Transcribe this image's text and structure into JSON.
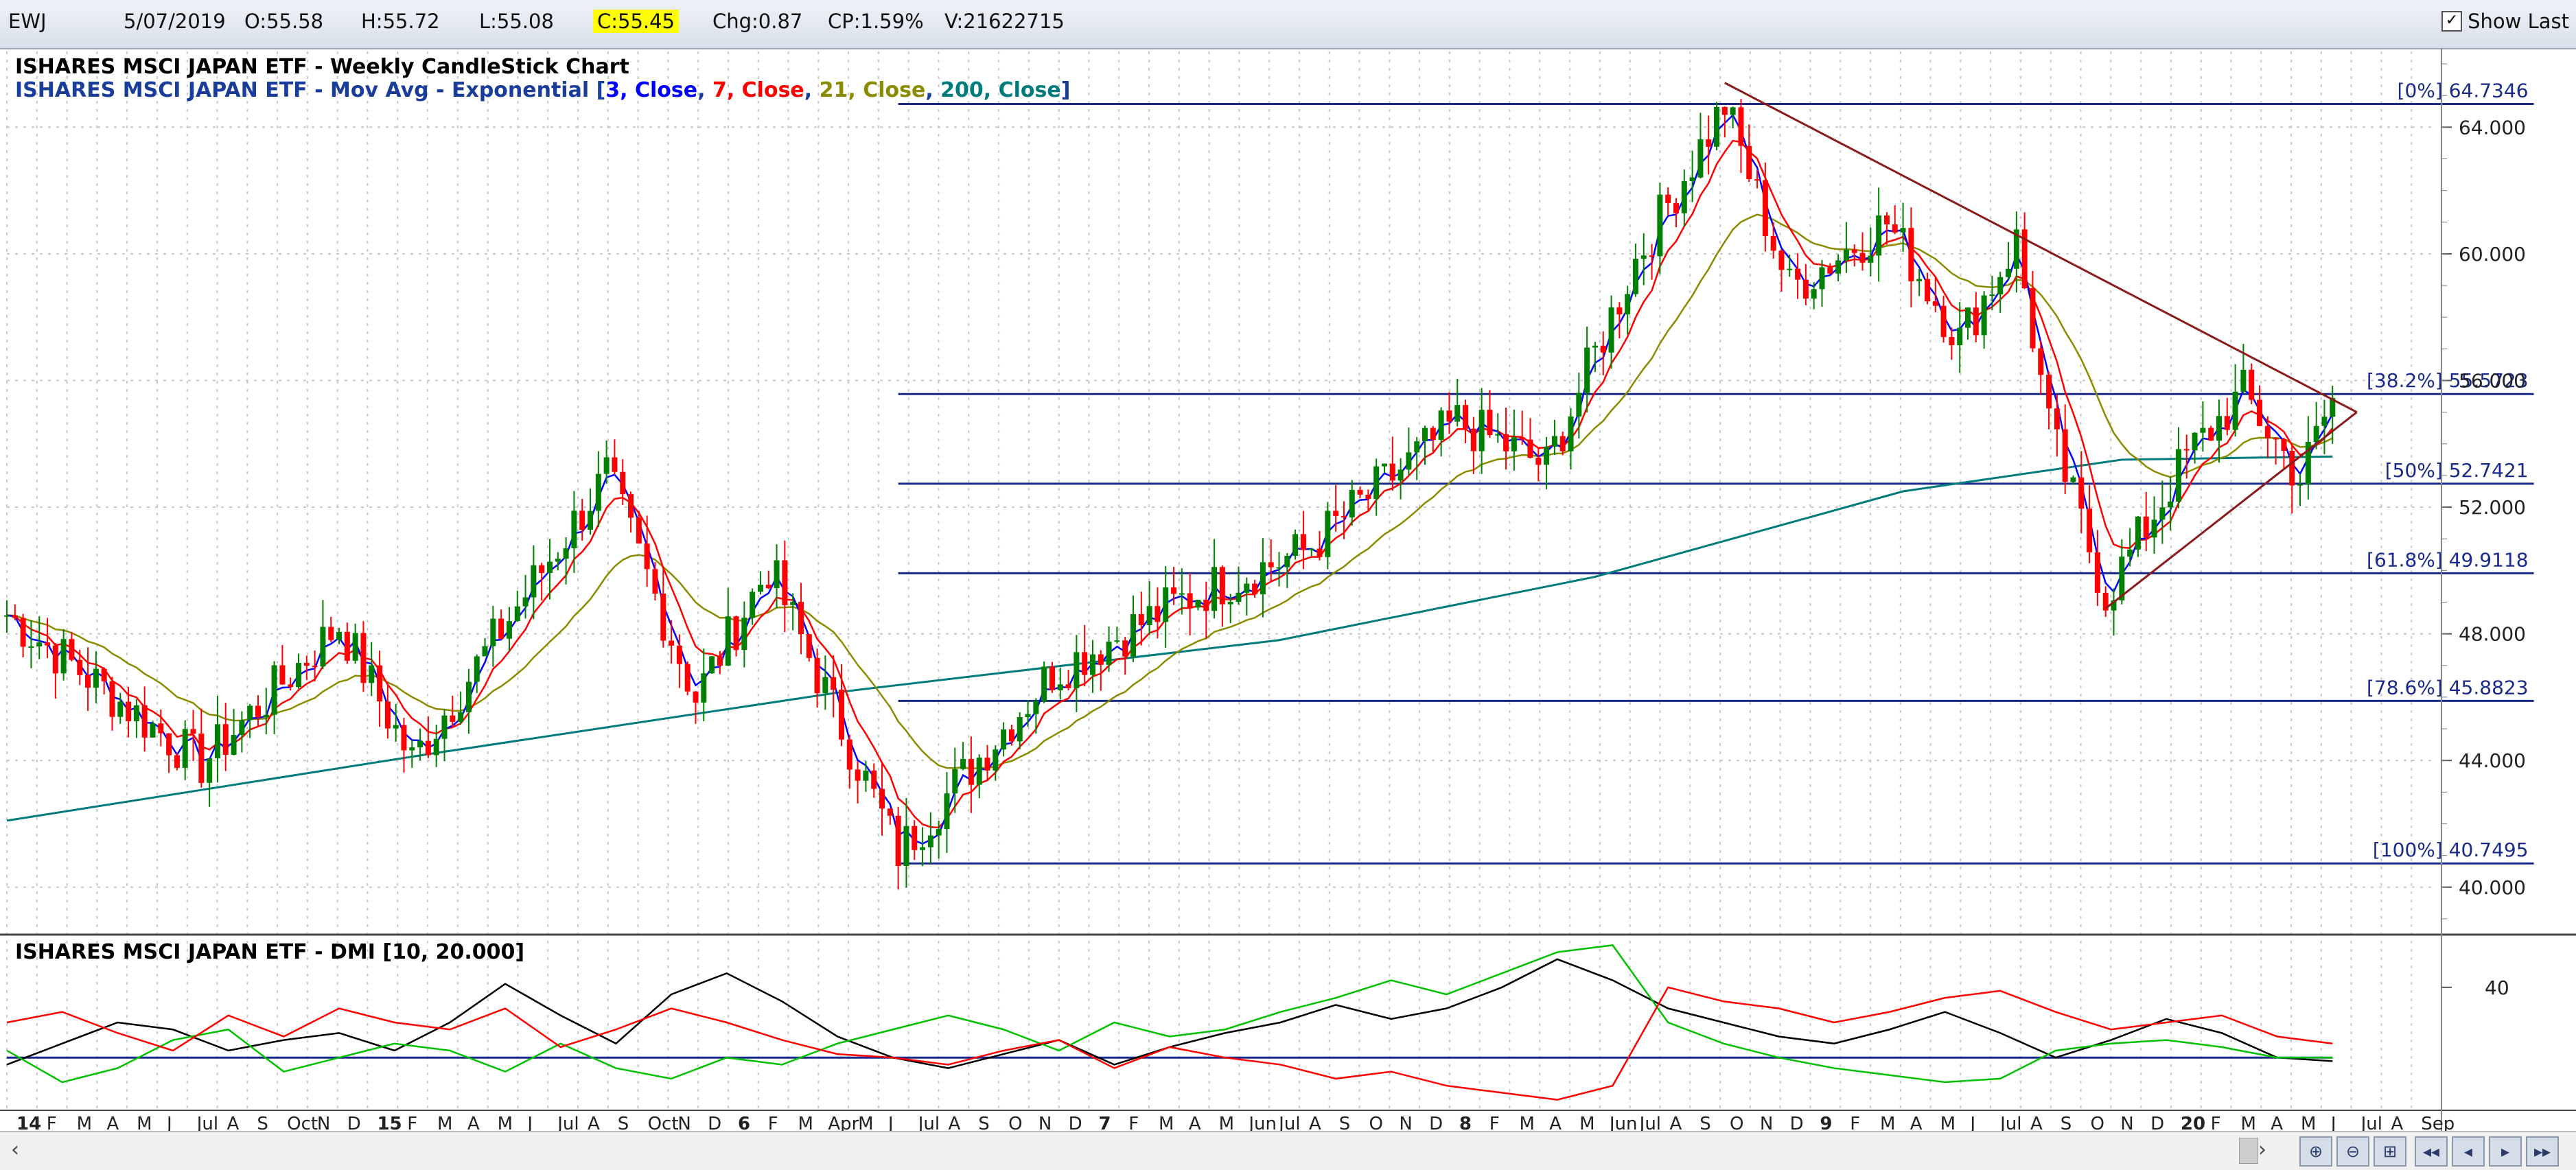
{
  "header": {
    "symbol": "EWJ",
    "date": "5/07/2019",
    "open": "O:55.58",
    "high": "H:55.72",
    "low": "L:55.08",
    "close": "C:55.45",
    "change": "Chg:0.87",
    "change_pct": "CP:1.59%",
    "volume": "V:21622715",
    "show_last_label": "Show Last",
    "show_last_checked": true
  },
  "chart_data": [
    {
      "type": "candlestick",
      "title": "ISHARES MSCI JAPAN ETF - Weekly CandleStick Chart",
      "subtitle_prefix": "ISHARES MSCI JAPAN ETF - Mov Avg - Exponential [",
      "ma_series": [
        {
          "name": "3, Close",
          "color": "#0000ff"
        },
        {
          "name": "7, Close",
          "color": "#ff0000"
        },
        {
          "name": "21, Close",
          "color": "#8b8b00"
        },
        {
          "name": "200, Close",
          "color": "#007b7b"
        }
      ],
      "y_ticks": [
        "40.000",
        "44.000",
        "48.000",
        "52.000",
        "56.000",
        "60.000",
        "64.000"
      ],
      "ylim": [
        38.5,
        66.5
      ],
      "fib_levels": [
        {
          "label": "[0%] 64.7346",
          "value": 64.7346
        },
        {
          "label": "[38.2%] 55.5723",
          "value": 55.5723
        },
        {
          "label": "[50%] 52.7421",
          "value": 52.7421
        },
        {
          "label": "[61.8%] 49.9118",
          "value": 49.9118
        },
        {
          "label": "[78.6%] 45.8823",
          "value": 45.8823
        },
        {
          "label": "[100%] 40.7495",
          "value": 40.7495
        }
      ],
      "trendlines": [
        {
          "from": [
            "2018-01-26",
            65.4
          ],
          "to": [
            "2019-07-26",
            55.0
          ]
        },
        {
          "from": [
            "2018-12-21",
            48.8
          ],
          "to": [
            "2019-07-26",
            55.0
          ]
        }
      ],
      "key_prices": [
        {
          "date": "2014-01-03",
          "value": 48.6
        },
        {
          "date": "2014-06-20",
          "value": 43.9
        },
        {
          "date": "2014-10-17",
          "value": 48.3
        },
        {
          "date": "2014-12-19",
          "value": 44.0
        },
        {
          "date": "2015-06-05",
          "value": 53.0
        },
        {
          "date": "2015-08-21",
          "value": 46.0
        },
        {
          "date": "2015-10-23",
          "value": 50.1
        },
        {
          "date": "2016-02-12",
          "value": 41.1
        },
        {
          "date": "2016-06-24",
          "value": 46.8
        },
        {
          "date": "2016-10-21",
          "value": 49.2
        },
        {
          "date": "2017-01-27",
          "value": 50.6
        },
        {
          "date": "2017-06-09",
          "value": 54.7
        },
        {
          "date": "2017-08-25",
          "value": 53.3
        },
        {
          "date": "2017-11-10",
          "value": 59.8
        },
        {
          "date": "2018-01-26",
          "value": 64.7
        },
        {
          "date": "2018-03-23",
          "value": 58.9
        },
        {
          "date": "2018-06-15",
          "value": 61.0
        },
        {
          "date": "2018-08-17",
          "value": 57.3
        },
        {
          "date": "2018-10-05",
          "value": 60.4
        },
        {
          "date": "2018-11-02",
          "value": 54.5
        },
        {
          "date": "2018-12-21",
          "value": 49.2
        },
        {
          "date": "2019-03-01",
          "value": 53.6
        },
        {
          "date": "2019-04-19",
          "value": 55.6
        },
        {
          "date": "2019-06-07",
          "value": 52.9
        },
        {
          "date": "2019-07-05",
          "value": 55.45
        }
      ],
      "ema200_points": [
        {
          "date": "2014-01-03",
          "value": 42.1
        },
        {
          "date": "2015-01-02",
          "value": 44.2
        },
        {
          "date": "2016-01-01",
          "value": 46.2
        },
        {
          "date": "2017-01-06",
          "value": 47.8
        },
        {
          "date": "2017-10-06",
          "value": 49.8
        },
        {
          "date": "2018-06-29",
          "value": 52.5
        },
        {
          "date": "2019-01-04",
          "value": 53.5
        },
        {
          "date": "2019-07-05",
          "value": 53.6
        }
      ]
    },
    {
      "type": "line",
      "title": "ISHARES MSCI JAPAN ETF - DMI [10, 20.000]",
      "y_ticks": [
        "40"
      ],
      "ylim": [
        5,
        55
      ],
      "threshold": 20,
      "series": [
        {
          "color": "#000000",
          "values": [
            18,
            24,
            30,
            28,
            22,
            25,
            27,
            22,
            30,
            41,
            32,
            24,
            38,
            44,
            36,
            26,
            20,
            17,
            21,
            25,
            18,
            23,
            27,
            30,
            35,
            31,
            34,
            40,
            48,
            42,
            34,
            30,
            26,
            24,
            28,
            33,
            27,
            20,
            25,
            31,
            27,
            20,
            19
          ]
        },
        {
          "color": "#00c000",
          "values": [
            22,
            13,
            17,
            25,
            28,
            16,
            20,
            24,
            22,
            16,
            24,
            17,
            14,
            20,
            18,
            24,
            28,
            32,
            28,
            22,
            30,
            26,
            28,
            33,
            37,
            42,
            38,
            44,
            50,
            52,
            30,
            24,
            20,
            17,
            15,
            13,
            14,
            22,
            24,
            25,
            23,
            20,
            20
          ]
        },
        {
          "color": "#ff0000",
          "values": [
            30,
            33,
            27,
            22,
            32,
            26,
            34,
            30,
            28,
            34,
            23,
            28,
            34,
            30,
            25,
            21,
            20,
            18,
            22,
            25,
            17,
            23,
            20,
            18,
            14,
            16,
            12,
            10,
            8,
            12,
            40,
            36,
            34,
            30,
            33,
            37,
            39,
            33,
            28,
            30,
            32,
            26,
            24
          ]
        }
      ]
    }
  ],
  "x_axis": {
    "labels": [
      "14",
      "F",
      "M",
      "A",
      "M",
      "J",
      "Jul",
      "A",
      "S",
      "Oct",
      "N",
      "D",
      "15",
      "F",
      "M",
      "A",
      "M",
      "J",
      "Jul",
      "A",
      "S",
      "Oct",
      "N",
      "D",
      "6",
      "F",
      "M",
      "Apr",
      "M",
      "J",
      "Jul",
      "A",
      "S",
      "O",
      "N",
      "D",
      "7",
      "F",
      "M",
      "A",
      "M",
      "Jun",
      "Jul",
      "A",
      "S",
      "O",
      "N",
      "D",
      "8",
      "F",
      "M",
      "A",
      "M",
      "Jun",
      "Jul",
      "A",
      "S",
      "O",
      "N",
      "D",
      "9",
      "F",
      "M",
      "A",
      "M",
      "J",
      "Jul",
      "A",
      "S",
      "O",
      "N",
      "D",
      "20",
      "F",
      "M",
      "A",
      "M",
      "J",
      "Jul",
      "A",
      "Sep"
    ],
    "year_labels": [
      "14",
      "15",
      "6",
      "7",
      "8",
      "9",
      "20"
    ]
  }
}
